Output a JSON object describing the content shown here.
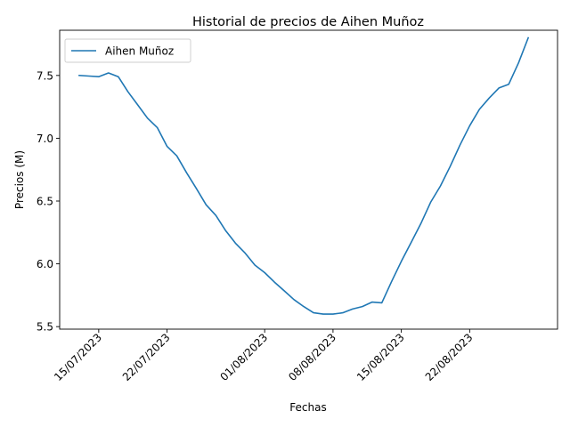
{
  "chart_data": {
    "type": "line",
    "title": "Historial de precios de Aihen Muñoz",
    "xlabel": "Fechas",
    "ylabel": "Precios (M)",
    "x_tick_labels": [
      "15/07/2023",
      "22/07/2023",
      "01/08/2023",
      "08/08/2023",
      "15/08/2023",
      "22/08/2023"
    ],
    "x_tick_dates": [
      "2023-07-15",
      "2023-07-22",
      "2023-08-01",
      "2023-08-08",
      "2023-08-15",
      "2023-08-22"
    ],
    "y_ticks": [
      5.5,
      6.0,
      6.5,
      7.0,
      7.5
    ],
    "y_tick_labels": [
      "5.5",
      "6.0",
      "6.5",
      "7.0",
      "7.5"
    ],
    "xlim": [
      "2023-07-11",
      "2023-08-31"
    ],
    "ylim": [
      5.48,
      7.86
    ],
    "grid": false,
    "legend_position": "upper-left",
    "series": [
      {
        "name": "Aihen Muñoz",
        "color": "#1f77b4",
        "x": [
          "2023-07-13",
          "2023-07-14",
          "2023-07-15",
          "2023-07-16",
          "2023-07-17",
          "2023-07-18",
          "2023-07-19",
          "2023-07-20",
          "2023-07-21",
          "2023-07-22",
          "2023-07-23",
          "2023-07-24",
          "2023-07-25",
          "2023-07-26",
          "2023-07-27",
          "2023-07-28",
          "2023-07-29",
          "2023-07-30",
          "2023-07-31",
          "2023-08-01",
          "2023-08-02",
          "2023-08-03",
          "2023-08-04",
          "2023-08-05",
          "2023-08-06",
          "2023-08-07",
          "2023-08-08",
          "2023-08-09",
          "2023-08-10",
          "2023-08-11",
          "2023-08-12",
          "2023-08-13",
          "2023-08-14",
          "2023-08-15",
          "2023-08-16",
          "2023-08-17",
          "2023-08-18",
          "2023-08-19",
          "2023-08-20",
          "2023-08-21",
          "2023-08-22",
          "2023-08-23",
          "2023-08-24",
          "2023-08-25",
          "2023-08-26",
          "2023-08-27",
          "2023-08-28"
        ],
        "values": [
          7.5,
          7.495,
          7.49,
          7.52,
          7.49,
          7.37,
          7.265,
          7.16,
          7.085,
          6.935,
          6.86,
          6.725,
          6.6,
          6.47,
          6.385,
          6.265,
          6.165,
          6.085,
          5.99,
          5.93,
          5.855,
          5.785,
          5.715,
          5.66,
          5.61,
          5.6,
          5.6,
          5.61,
          5.64,
          5.66,
          5.695,
          5.69,
          5.86,
          6.02,
          6.17,
          6.32,
          6.49,
          6.62,
          6.775,
          6.945,
          7.1,
          7.23,
          7.32,
          7.4,
          7.43,
          7.6,
          7.8
        ]
      }
    ]
  }
}
